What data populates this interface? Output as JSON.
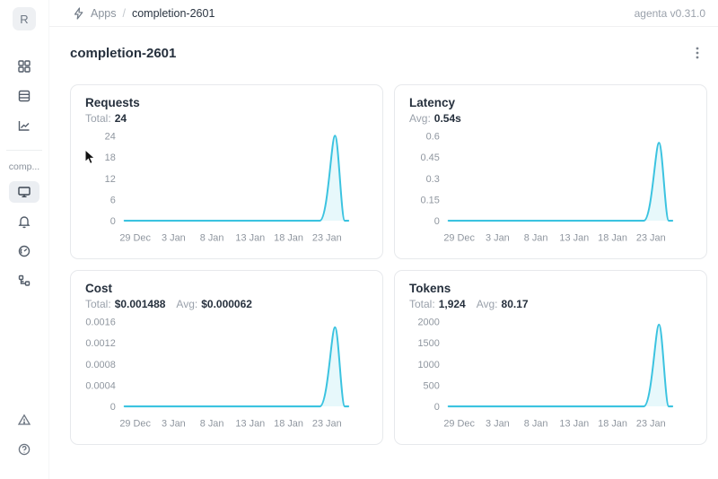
{
  "topbar": {
    "breadcrumb": {
      "root": "Apps",
      "separator": "/",
      "current": "completion-2601"
    },
    "version": "agenta v0.31.0"
  },
  "sidebar": {
    "avatar_letter": "R",
    "project_label": "comp...",
    "items": [
      {
        "icon": "apps-grid",
        "selected": false
      },
      {
        "icon": "table-rows",
        "selected": false
      },
      {
        "icon": "line-chart",
        "selected": false
      },
      {
        "icon": "monitor",
        "selected": true
      },
      {
        "icon": "bell",
        "selected": false
      },
      {
        "icon": "gauge",
        "selected": false
      },
      {
        "icon": "tree",
        "selected": false
      },
      {
        "icon": "alert-triangle",
        "selected": false
      },
      {
        "icon": "help-circle",
        "selected": false
      }
    ]
  },
  "page": {
    "title": "completion-2601"
  },
  "colors": {
    "accent_line": "#3bc3e0",
    "accent_fill": "#3bc3e0"
  },
  "chart_data": [
    {
      "type": "line",
      "title": "Requests",
      "stats": [
        {
          "label": "Total:",
          "value": "24"
        }
      ],
      "y_ticks": [
        "0",
        "6",
        "12",
        "18",
        "24"
      ],
      "y_max": 24,
      "x_ticks": [
        "29 Dec",
        "3 Jan",
        "8 Jan",
        "13 Jan",
        "18 Jan",
        "23 Jan"
      ],
      "baseline_value": 0,
      "spike": {
        "x_approx": "27 Jan",
        "peak": 24
      },
      "legend": "none",
      "grid": "off"
    },
    {
      "type": "line",
      "title": "Latency",
      "stats": [
        {
          "label": "Avg:",
          "value": "0.54s"
        }
      ],
      "y_ticks": [
        "0",
        "0.15",
        "0.3",
        "0.45",
        "0.6"
      ],
      "y_max": 0.6,
      "x_ticks": [
        "29 Dec",
        "3 Jan",
        "8 Jan",
        "13 Jan",
        "18 Jan",
        "23 Jan"
      ],
      "baseline_value": 0,
      "spike": {
        "x_approx": "27 Jan",
        "peak": 0.55
      },
      "legend": "none",
      "grid": "off"
    },
    {
      "type": "line",
      "title": "Cost",
      "stats": [
        {
          "label": "Total:",
          "value": "$0.001488"
        },
        {
          "label": "Avg:",
          "value": "$0.000062"
        }
      ],
      "y_ticks": [
        "0",
        "0.0004",
        "0.0008",
        "0.0012",
        "0.0016"
      ],
      "y_max": 0.0016,
      "x_ticks": [
        "29 Dec",
        "3 Jan",
        "8 Jan",
        "13 Jan",
        "18 Jan",
        "23 Jan"
      ],
      "baseline_value": 0,
      "spike": {
        "x_approx": "27 Jan",
        "peak": 0.001488
      },
      "legend": "none",
      "grid": "off"
    },
    {
      "type": "line",
      "title": "Tokens",
      "stats": [
        {
          "label": "Total:",
          "value": "1,924"
        },
        {
          "label": "Avg:",
          "value": "80.17"
        }
      ],
      "y_ticks": [
        "0",
        "500",
        "1000",
        "1500",
        "2000"
      ],
      "y_max": 2000,
      "x_ticks": [
        "29 Dec",
        "3 Jan",
        "8 Jan",
        "13 Jan",
        "18 Jan",
        "23 Jan"
      ],
      "baseline_value": 0,
      "spike": {
        "x_approx": "27 Jan",
        "peak": 1924
      },
      "legend": "none",
      "grid": "off"
    }
  ]
}
